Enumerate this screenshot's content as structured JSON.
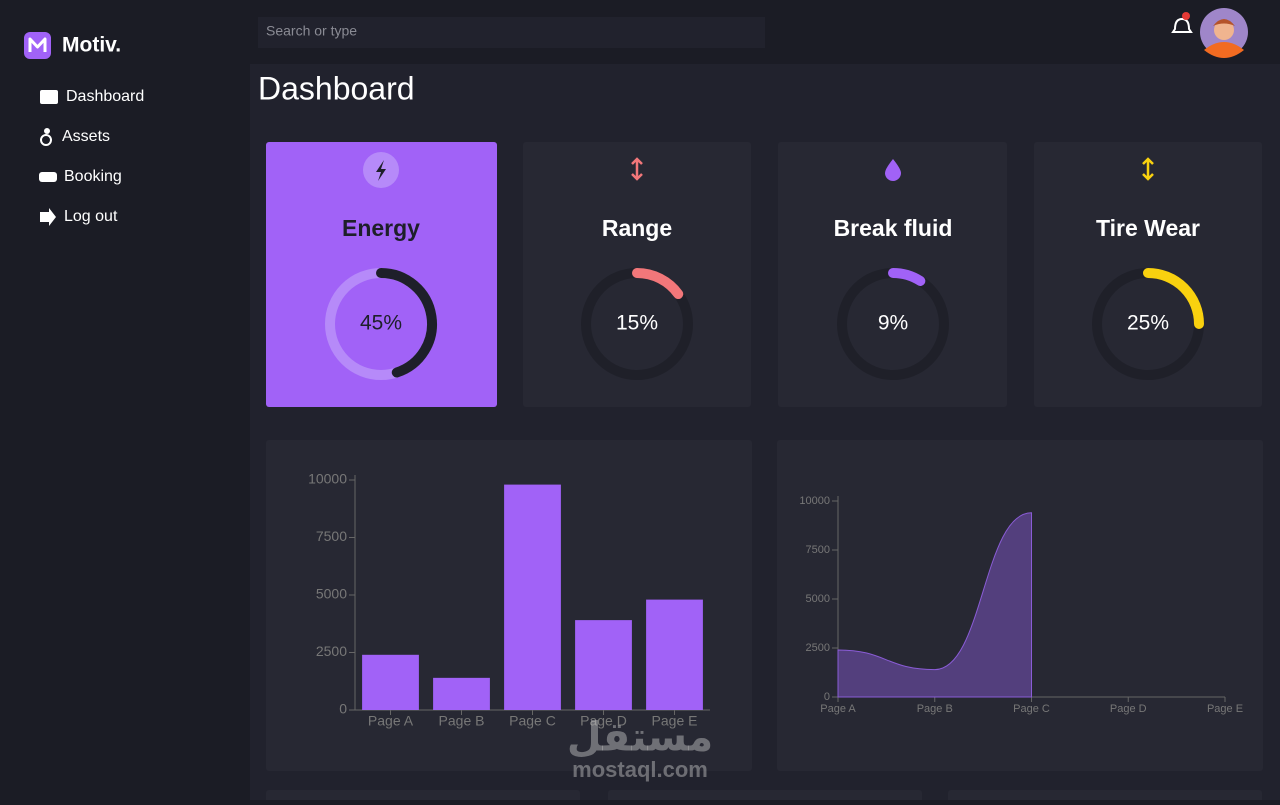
{
  "brand": "Motiv.",
  "nav": [
    "Dashboard",
    "Assets",
    "Booking",
    "Log out"
  ],
  "search_placeholder": "Search or type",
  "page_title": "Dashboard",
  "gauges": [
    {
      "title": "Energy",
      "value": 45,
      "value_label": "45%",
      "color": "#1e1f2a"
    },
    {
      "title": "Range",
      "value": 15,
      "value_label": "15%",
      "color": "#f2777a"
    },
    {
      "title": "Break fluid",
      "value": 9,
      "value_label": "9%",
      "color": "#a162f7"
    },
    {
      "title": "Tire Wear",
      "value": 25,
      "value_label": "25%",
      "color": "#f9d10f"
    }
  ],
  "chart_data": [
    {
      "type": "bar",
      "categories": [
        "Page A",
        "Page B",
        "Page C",
        "Page D",
        "Page E"
      ],
      "values": [
        2400,
        1398,
        9800,
        3908,
        4800
      ],
      "color": "#a162f7",
      "ylim": [
        0,
        10000
      ],
      "yticks": [
        0,
        2500,
        5000,
        7500,
        10000
      ]
    },
    {
      "type": "area",
      "categories": [
        "Page A",
        "Page B",
        "Page C",
        "Page D",
        "Page E"
      ],
      "values": [
        2400,
        1398,
        9400,
        null,
        null
      ],
      "color": "#8a5cd6",
      "ylim": [
        0,
        10000
      ],
      "yticks": [
        0,
        2500,
        5000,
        7500,
        10000
      ]
    }
  ],
  "watermark": {
    "arabic": "مستقل",
    "latin": "mostaql.com"
  }
}
